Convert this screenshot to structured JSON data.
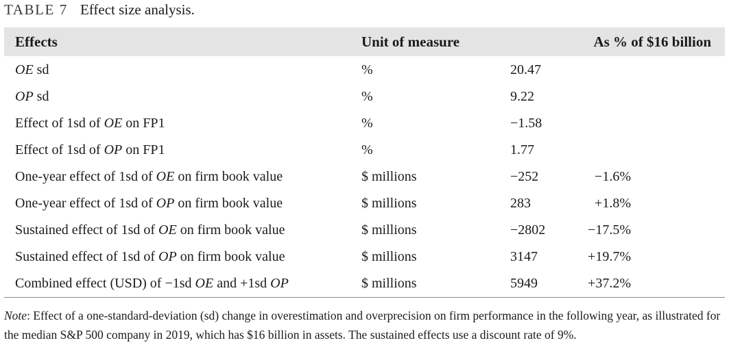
{
  "caption": {
    "label": "TABLE 7",
    "title": "Effect size analysis."
  },
  "headers": [
    "Effects",
    "Unit of measure",
    "As % of $16 billion"
  ],
  "rows": [
    {
      "effect": [
        {
          "t": "OE",
          "i": true
        },
        {
          "t": " sd"
        }
      ],
      "unit": "%",
      "value": "20.47",
      "pct": ""
    },
    {
      "effect": [
        {
          "t": "OP",
          "i": true
        },
        {
          "t": " sd"
        }
      ],
      "unit": "%",
      "value": "9.22",
      "pct": ""
    },
    {
      "effect": [
        {
          "t": "Effect of 1sd of "
        },
        {
          "t": "OE",
          "i": true
        },
        {
          "t": " on FP1"
        }
      ],
      "unit": "%",
      "value": "−1.58",
      "pct": ""
    },
    {
      "effect": [
        {
          "t": "Effect of 1sd of "
        },
        {
          "t": "OP",
          "i": true
        },
        {
          "t": " on FP1"
        }
      ],
      "unit": "%",
      "value": "1.77",
      "pct": ""
    },
    {
      "effect": [
        {
          "t": "One-year effect of 1sd of "
        },
        {
          "t": "OE",
          "i": true
        },
        {
          "t": " on firm book value"
        }
      ],
      "unit": "$ millions",
      "value": "−252",
      "pct": "−1.6%"
    },
    {
      "effect": [
        {
          "t": "One-year effect of 1sd of "
        },
        {
          "t": "OP",
          "i": true
        },
        {
          "t": " on firm book value"
        }
      ],
      "unit": "$ millions",
      "value": "283",
      "pct": "+1.8%"
    },
    {
      "effect": [
        {
          "t": "Sustained effect of 1sd of "
        },
        {
          "t": "OE",
          "i": true
        },
        {
          "t": " on firm book value"
        }
      ],
      "unit": "$ millions",
      "value": "−2802",
      "pct": "−17.5%"
    },
    {
      "effect": [
        {
          "t": "Sustained effect of 1sd of "
        },
        {
          "t": "OP",
          "i": true
        },
        {
          "t": " on firm book value"
        }
      ],
      "unit": "$ millions",
      "value": "3147",
      "pct": "+19.7%"
    },
    {
      "effect": [
        {
          "t": "Combined effect (USD) of −1sd "
        },
        {
          "t": "OE",
          "i": true
        },
        {
          "t": " and +1sd "
        },
        {
          "t": "OP",
          "i": true
        }
      ],
      "unit": "$ millions",
      "value": "5949",
      "pct": "+37.2%"
    }
  ],
  "note": {
    "label": "Note",
    "text": ": Effect of a one-standard-deviation (sd) change in overestimation and overprecision on firm performance in the following year, as illustrated for the median S&P 500 company in 2019, which has $16 billion in assets. The sustained effects use a discount rate of 9%."
  }
}
